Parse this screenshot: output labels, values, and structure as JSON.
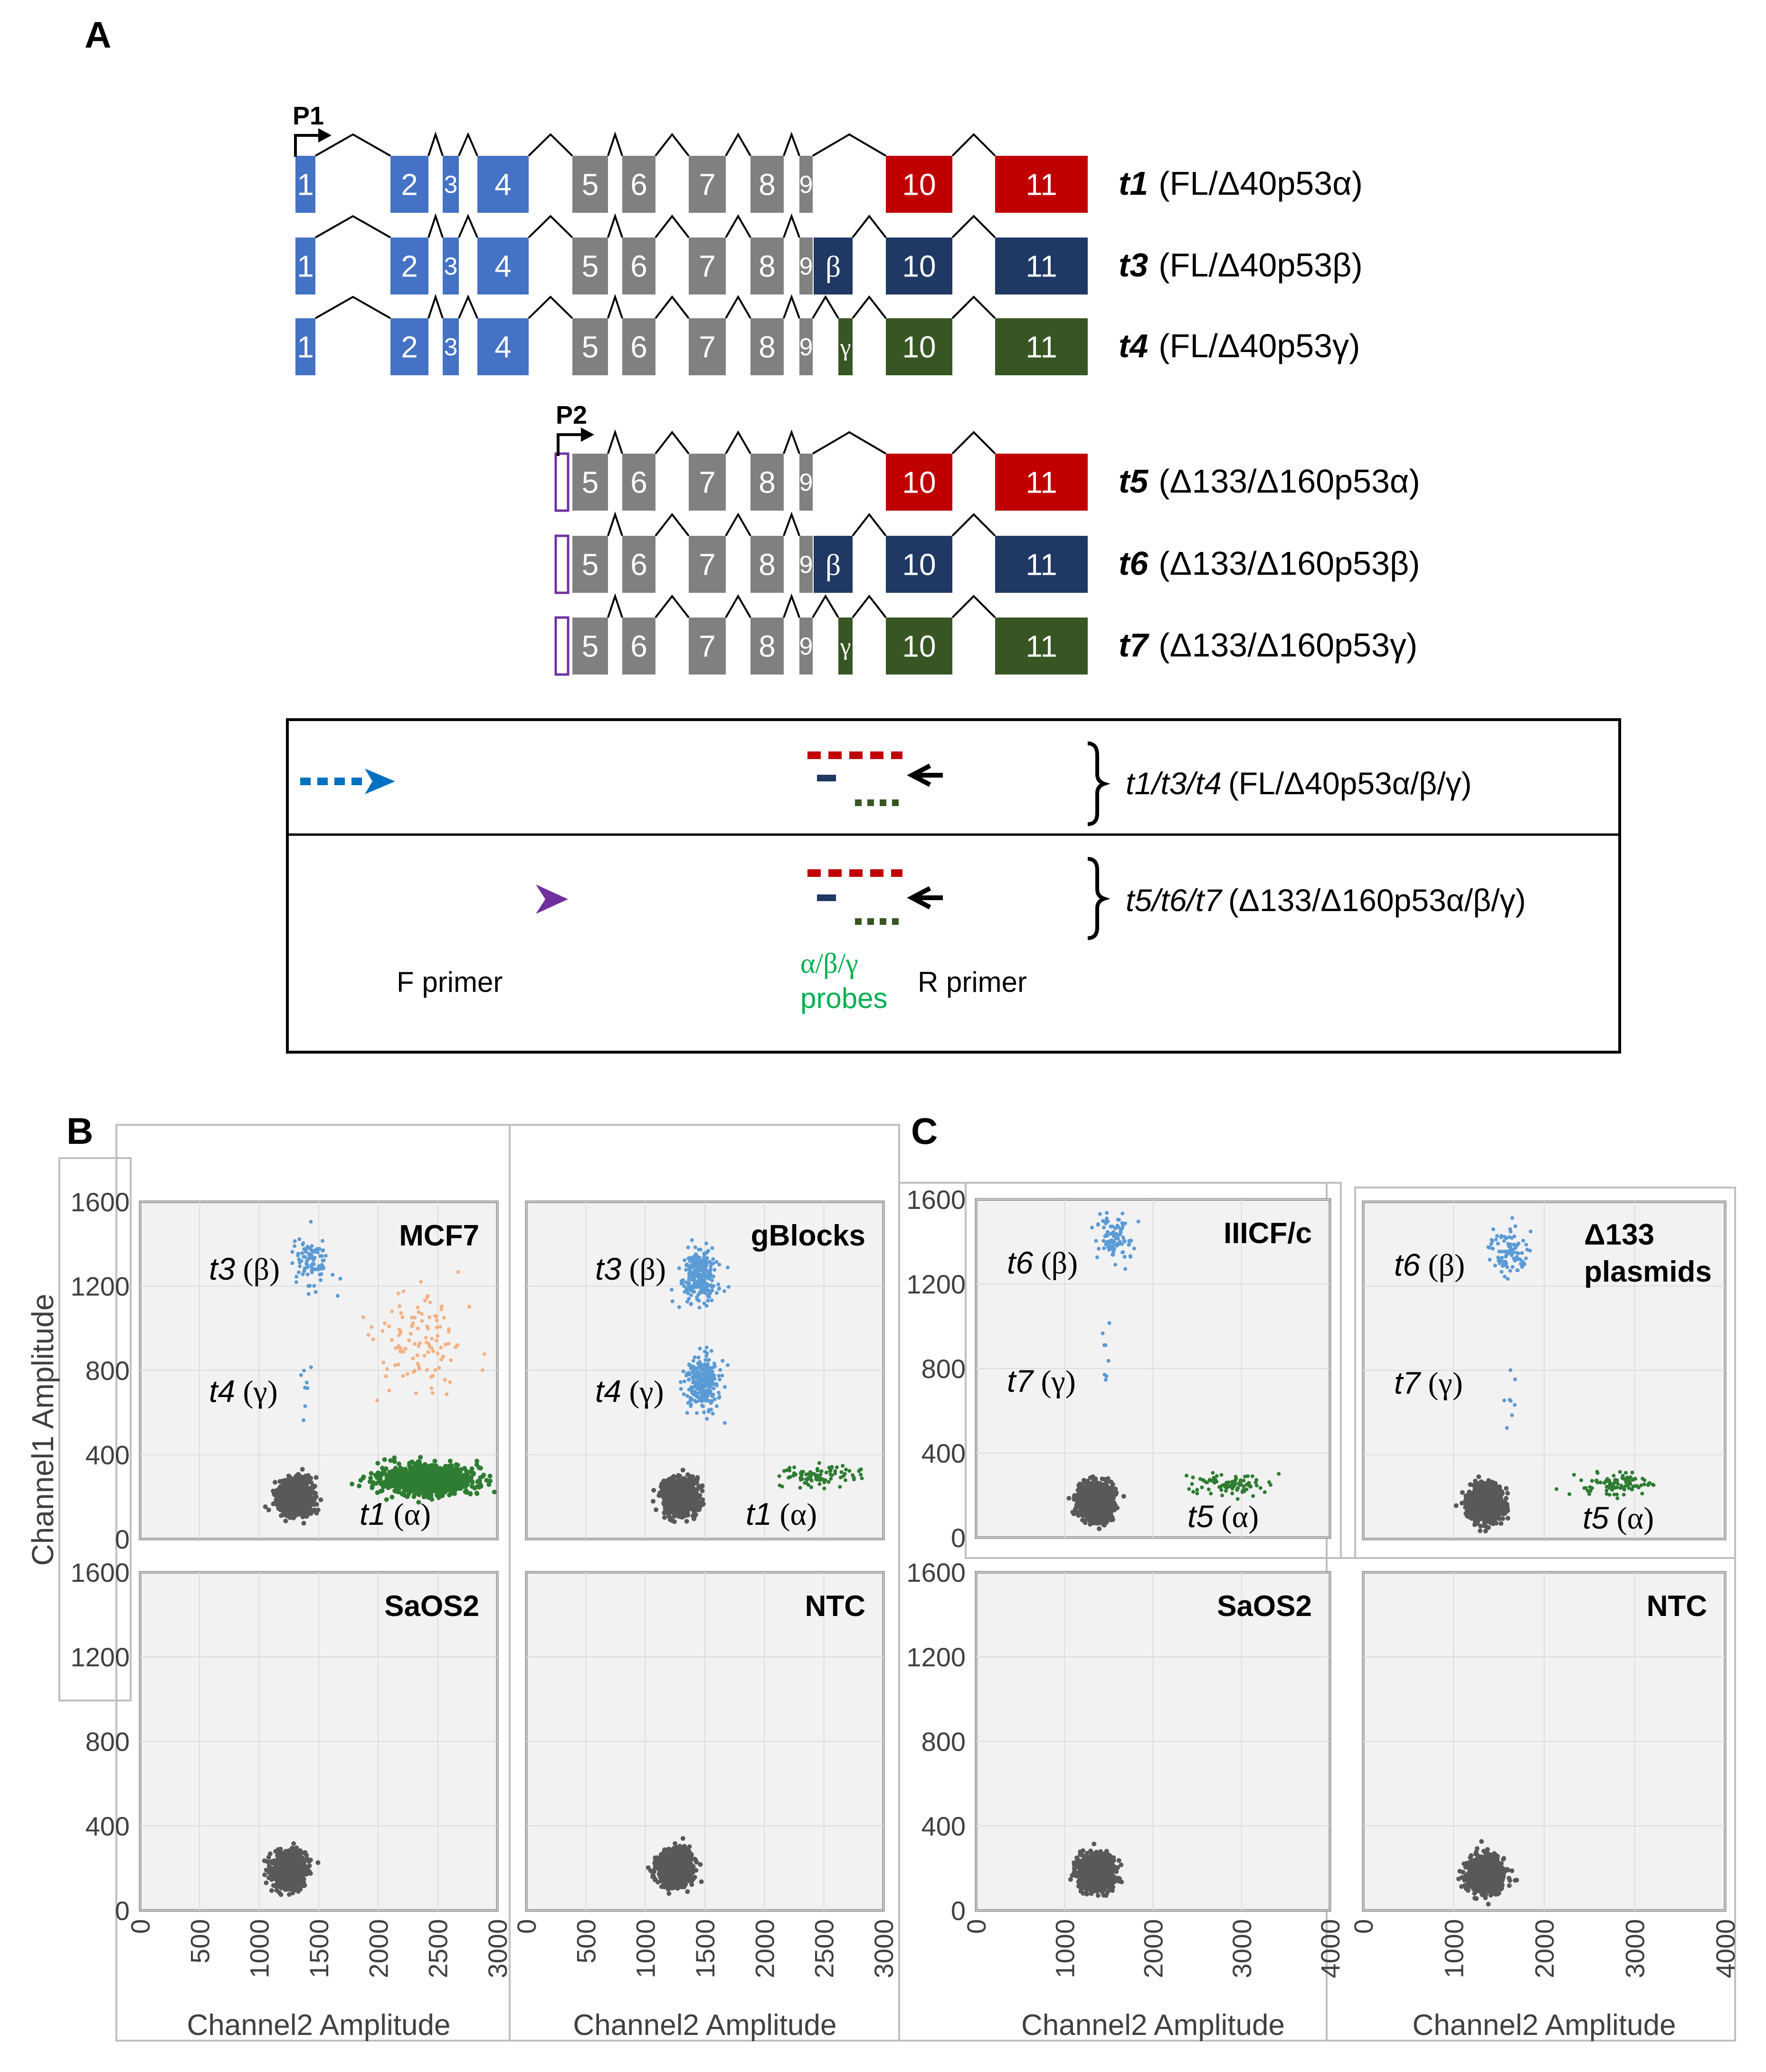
{
  "panel_labels": {
    "a": "A",
    "b": "B",
    "c": "C"
  },
  "promoters": {
    "p1": "P1",
    "p2": "P2"
  },
  "transcripts": [
    {
      "name": "t1",
      "desc": "(FL/Δ40p53α)",
      "promoter": "P1",
      "isoform": "alpha",
      "exons": [
        "1",
        "2",
        "3",
        "4",
        "5",
        "6",
        "7",
        "8",
        "9",
        "10",
        "11"
      ]
    },
    {
      "name": "t3",
      "desc": "(FL/Δ40p53β)",
      "promoter": "P1",
      "isoform": "beta",
      "exons": [
        "1",
        "2",
        "3",
        "4",
        "5",
        "6",
        "7",
        "8",
        "9",
        "β",
        "10",
        "11"
      ]
    },
    {
      "name": "t4",
      "desc": "(FL/Δ40p53γ)",
      "promoter": "P1",
      "isoform": "gamma",
      "exons": [
        "1",
        "2",
        "3",
        "4",
        "5",
        "6",
        "7",
        "8",
        "9",
        "γ",
        "10",
        "11"
      ]
    },
    {
      "name": "t5",
      "desc": "(Δ133/Δ160p53α)",
      "promoter": "P2",
      "isoform": "alpha",
      "exons": [
        "5",
        "6",
        "7",
        "8",
        "9",
        "10",
        "11"
      ]
    },
    {
      "name": "t6",
      "desc": "(Δ133/Δ160p53β)",
      "promoter": "P2",
      "isoform": "beta",
      "exons": [
        "5",
        "6",
        "7",
        "8",
        "9",
        "β",
        "10",
        "11"
      ]
    },
    {
      "name": "t7",
      "desc": "(Δ133/Δ160p53γ)",
      "promoter": "P2",
      "isoform": "gamma",
      "exons": [
        "5",
        "6",
        "7",
        "8",
        "9",
        "γ",
        "10",
        "11"
      ]
    }
  ],
  "colors": {
    "p1_exons": "#4472c4",
    "core_exons": "#808080",
    "alpha": "#c00000",
    "beta": "#1f3864",
    "gamma": "#375623",
    "f_primer_p1": "#0070c0",
    "f_primer_p2": "#7030a0",
    "probes_text": "#00b050",
    "droplet_neg": "#595959",
    "droplet_blue": "#5b9bd5",
    "droplet_orange": "#f4b183",
    "droplet_green": "#2e7d32"
  },
  "assay": {
    "row1_name": "t1/t3/t4",
    "row1_desc": "(FL/Δ40p53α/β/γ)",
    "row2_name": "t5/t6/t7",
    "row2_desc": "(Δ133/Δ160p53α/β/γ)",
    "f_primer": "F primer",
    "probes_line1": "α/β/γ",
    "probes_line2": "probes",
    "r_primer": "R primer"
  },
  "axes": {
    "y_label": "Channel1 Amplitude",
    "x_label": "Channel2 Amplitude",
    "y_ticks": [
      "0",
      "400",
      "800",
      "1200",
      "1600"
    ],
    "x_ticks_b": [
      "0",
      "500",
      "1000",
      "1500",
      "2000",
      "2500",
      "3000"
    ],
    "x_ticks_c": [
      "0",
      "1000",
      "2000",
      "3000",
      "4000"
    ]
  },
  "chart_data": [
    {
      "type": "scatter",
      "title": "MCF7",
      "panel": "B",
      "xlim": [
        0,
        3000
      ],
      "ylim": [
        0,
        1600
      ],
      "clusters": [
        {
          "label": "",
          "x": 1300,
          "y": 200,
          "count": "dense"
        },
        {
          "label": "t1 (α)",
          "x": 2400,
          "y": 280,
          "count": "dense"
        },
        {
          "label": "t3 (β)",
          "x": 1450,
          "y": 1320,
          "count": "sparse"
        },
        {
          "label": "t4 (γ)",
          "x": 1400,
          "y": 700,
          "count": "few"
        },
        {
          "label": "",
          "x": 2300,
          "y": 950,
          "count": "scattered"
        }
      ],
      "annotations": [
        {
          "text": "t3",
          "suffix": " (β)"
        },
        {
          "text": "t4",
          "suffix": " (γ)"
        },
        {
          "text": "t1",
          "suffix": " (α)"
        }
      ]
    },
    {
      "type": "scatter",
      "title": "gBlocks",
      "panel": "B",
      "xlim": [
        0,
        3000
      ],
      "ylim": [
        0,
        1600
      ],
      "clusters": [
        {
          "label": "",
          "x": 1300,
          "y": 200,
          "count": "dense"
        },
        {
          "label": "t3 (β)",
          "x": 1450,
          "y": 1250,
          "count": "medium"
        },
        {
          "label": "t4 (γ)",
          "x": 1480,
          "y": 740,
          "count": "medium"
        },
        {
          "label": "t1 (α)",
          "x": 2500,
          "y": 300,
          "count": "sparse"
        }
      ],
      "annotations": [
        {
          "text": "t3",
          "suffix": " (β)"
        },
        {
          "text": "t4",
          "suffix": " (γ)"
        },
        {
          "text": "t1",
          "suffix": " (α)"
        }
      ]
    },
    {
      "type": "scatter",
      "title": "SaOS2",
      "panel": "B",
      "xlim": [
        0,
        3000
      ],
      "ylim": [
        0,
        1600
      ],
      "clusters": [
        {
          "label": "",
          "x": 1250,
          "y": 190,
          "count": "dense"
        }
      ],
      "annotations": []
    },
    {
      "type": "scatter",
      "title": "NTC",
      "panel": "B",
      "xlim": [
        0,
        3000
      ],
      "ylim": [
        0,
        1600
      ],
      "clusters": [
        {
          "label": "",
          "x": 1250,
          "y": 200,
          "count": "dense"
        }
      ],
      "annotations": []
    },
    {
      "type": "scatter",
      "title": "IIICF/c",
      "panel": "C",
      "xlim": [
        0,
        4000
      ],
      "ylim": [
        0,
        1600
      ],
      "clusters": [
        {
          "label": "",
          "x": 1350,
          "y": 170,
          "count": "dense"
        },
        {
          "label": "t5 (α)",
          "x": 2900,
          "y": 250,
          "count": "sparse"
        },
        {
          "label": "t6 (β)",
          "x": 1550,
          "y": 1420,
          "count": "sparse"
        },
        {
          "label": "t7 (γ)",
          "x": 1450,
          "y": 900,
          "count": "few"
        }
      ],
      "annotations": [
        {
          "text": "t6",
          "suffix": " (β)"
        },
        {
          "text": "t7",
          "suffix": " (γ)"
        },
        {
          "text": "t5",
          "suffix": " (α)"
        }
      ]
    },
    {
      "type": "scatter",
      "title": "Δ133 plasmids",
      "panel": "C",
      "xlim": [
        0,
        4000
      ],
      "ylim": [
        0,
        1600
      ],
      "clusters": [
        {
          "label": "",
          "x": 1350,
          "y": 170,
          "count": "dense"
        },
        {
          "label": "t5 (α)",
          "x": 2800,
          "y": 260,
          "count": "sparse"
        },
        {
          "label": "t6 (β)",
          "x": 1600,
          "y": 1350,
          "count": "sparse"
        },
        {
          "label": "t7 (γ)",
          "x": 1620,
          "y": 730,
          "count": "few"
        }
      ],
      "annotations": [
        {
          "text": "t6",
          "suffix": " (β)"
        },
        {
          "text": "t7",
          "suffix": " (γ)"
        },
        {
          "text": "t5",
          "suffix": " (α)"
        }
      ]
    },
    {
      "type": "scatter",
      "title": "SaOS2",
      "panel": "C",
      "xlim": [
        0,
        4000
      ],
      "ylim": [
        0,
        1600
      ],
      "clusters": [
        {
          "label": "",
          "x": 1350,
          "y": 180,
          "count": "dense"
        }
      ],
      "annotations": []
    },
    {
      "type": "scatter",
      "title": "NTC",
      "panel": "C",
      "xlim": [
        0,
        4000
      ],
      "ylim": [
        0,
        1600
      ],
      "clusters": [
        {
          "label": "",
          "x": 1350,
          "y": 170,
          "count": "dense"
        }
      ],
      "annotations": []
    }
  ]
}
